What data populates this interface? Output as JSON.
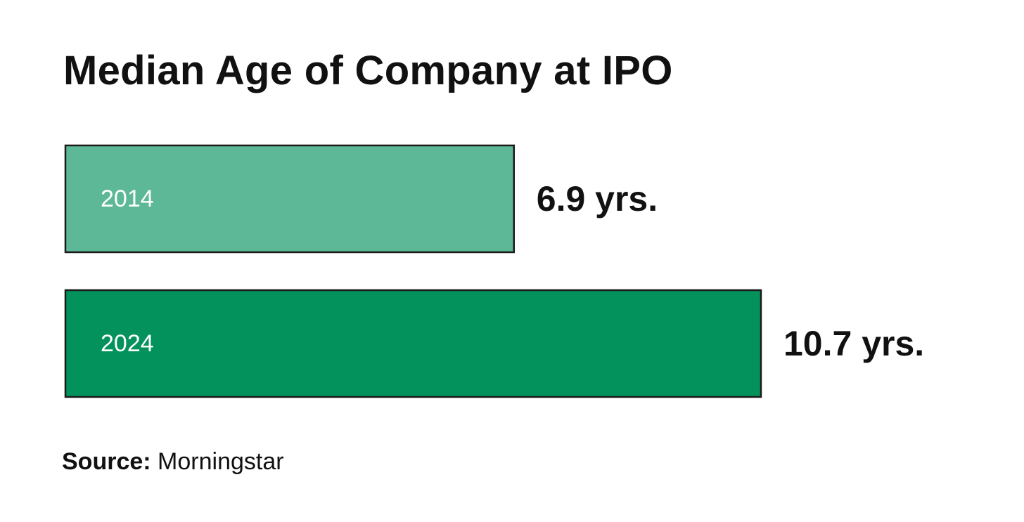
{
  "chart_data": {
    "type": "bar",
    "orientation": "horizontal",
    "title": "Median Age of Company at IPO",
    "categories": [
      "2014",
      "2024"
    ],
    "values": [
      6.9,
      10.7
    ],
    "value_labels": [
      "6.9 yrs.",
      "10.7 yrs."
    ],
    "unit": "yrs.",
    "colors": [
      "#5cb896",
      "#03915c"
    ],
    "category_label_color": "#ffffff",
    "bar_border_color": "#1a1a1a",
    "xlim": [
      0,
      10.7
    ],
    "grid": false,
    "legend": "none"
  },
  "source": {
    "label": "Source:",
    "value": "Morningstar"
  }
}
